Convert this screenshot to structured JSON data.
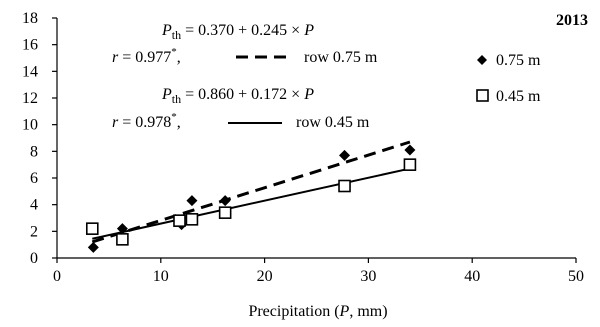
{
  "chart_data": {
    "type": "scatter",
    "year_label": "2013",
    "xlabel": "Precipitation (P, mm)",
    "xlabel_parts": {
      "pre": "Precipitation (",
      "var": "P",
      "post": ", mm)"
    },
    "ylabel": "",
    "xlim": [
      0,
      50
    ],
    "ylim": [
      0,
      18
    ],
    "xticks": [
      0,
      10,
      20,
      30,
      40,
      50
    ],
    "yticks": [
      0,
      2,
      4,
      6,
      8,
      10,
      12,
      14,
      16,
      18
    ],
    "grid": false,
    "legend_position": "right",
    "series": [
      {
        "name": "0.75 m",
        "marker": "diamond",
        "color": "#000000",
        "points": [
          [
            3.5,
            0.8
          ],
          [
            6.3,
            2.2
          ],
          [
            12.0,
            2.5
          ],
          [
            13.0,
            4.3
          ],
          [
            16.2,
            4.3
          ],
          [
            27.7,
            7.7
          ],
          [
            34.0,
            8.1
          ]
        ]
      },
      {
        "name": "0.45 m",
        "marker": "square-open",
        "color": "#000000",
        "points": [
          [
            3.4,
            2.2
          ],
          [
            6.3,
            1.4
          ],
          [
            11.8,
            2.8
          ],
          [
            13.0,
            2.9
          ],
          [
            16.2,
            3.4
          ],
          [
            27.7,
            5.4
          ],
          [
            34.0,
            7.0
          ]
        ]
      }
    ],
    "regressions": [
      {
        "series": "0.75 m",
        "intercept": 0.37,
        "slope": 0.245,
        "x_range": [
          3.4,
          34.0
        ],
        "style": "dashed",
        "eq_lhs": "th",
        "eq_rhs": "= 0.370 + 0.245 ×",
        "eq_var": "P",
        "r_text": "= 0.977",
        "r_sup": "*",
        "r_tail": ",",
        "line_label": "row 0.75 m"
      },
      {
        "series": "0.45 m",
        "intercept": 0.86,
        "slope": 0.172,
        "x_range": [
          3.4,
          34.0
        ],
        "style": "solid",
        "eq_lhs": "th",
        "eq_rhs": "= 0.860 + 0.172 ×",
        "eq_var": "P",
        "r_text": "= 0.978",
        "r_sup": "*",
        "r_tail": ",",
        "line_label": "row 0.45 m"
      }
    ]
  }
}
